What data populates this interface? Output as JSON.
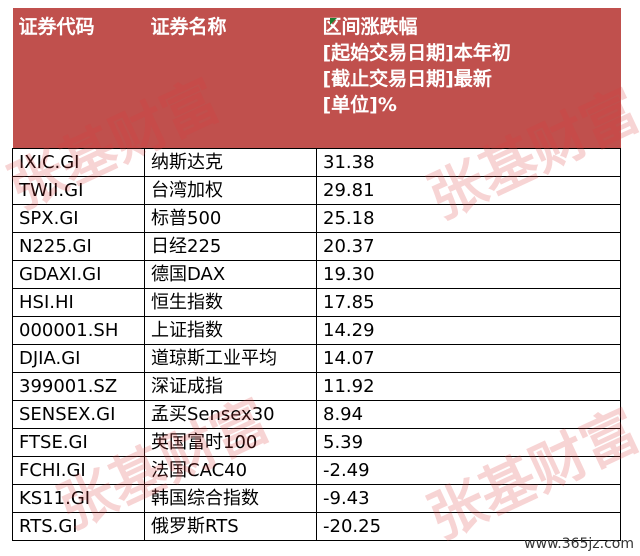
{
  "header": {
    "code": "证券代码",
    "name": "证券名称",
    "change_lines": [
      "区间涨跌幅",
      "[起始交易日期]本年初",
      "[截止交易日期]最新",
      "[单位]%"
    ]
  },
  "rows": [
    {
      "code": "IXIC.GI",
      "name": "纳斯达克",
      "change": "31.38"
    },
    {
      "code": "TWII.GI",
      "name": "台湾加权",
      "change": "29.81"
    },
    {
      "code": "SPX.GI",
      "name": "标普500",
      "change": "25.18"
    },
    {
      "code": "N225.GI",
      "name": "日经225",
      "change": "20.37"
    },
    {
      "code": "GDAXI.GI",
      "name": "德国DAX",
      "change": "19.30"
    },
    {
      "code": "HSI.HI",
      "name": "恒生指数",
      "change": "17.85"
    },
    {
      "code": "000001.SH",
      "name": "上证指数",
      "change": "14.29"
    },
    {
      "code": "DJIA.GI",
      "name": "道琼斯工业平均",
      "change": "14.07"
    },
    {
      "code": "399001.SZ",
      "name": "深证成指",
      "change": "11.92"
    },
    {
      "code": "SENSEX.GI",
      "name": "孟买Sensex30",
      "change": "8.94"
    },
    {
      "code": "FTSE.GI",
      "name": "英国富时100",
      "change": "5.39"
    },
    {
      "code": "FCHI.GI",
      "name": "法国CAC40",
      "change": "-2.49"
    },
    {
      "code": "KS11.GI",
      "name": "韩国综合指数",
      "change": "-9.43"
    },
    {
      "code": "RTS.GI",
      "name": "俄罗斯RTS",
      "change": "-20.25"
    }
  ],
  "watermark": "张基财富",
  "site": "www.365jz.com",
  "colors": {
    "header_bg": "#c0504d",
    "header_text": "#ffffff",
    "watermark": "#dc3c3c"
  }
}
